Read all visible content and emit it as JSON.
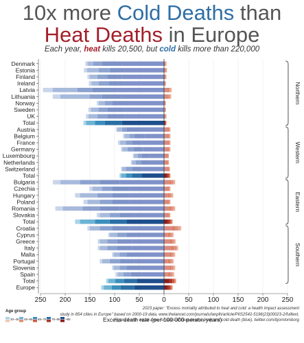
{
  "title": {
    "line1_pre": "10x more ",
    "line1_cold": "Cold Deaths",
    "line1_post": " than",
    "line2_heat": "Heat Deaths",
    "line2_post": " in Europe"
  },
  "subtitle": {
    "pre": "Each year, ",
    "heat": "heat",
    "mid": " kills 20,500, but ",
    "cold": "cold",
    "post": " kills more than 220,000"
  },
  "footnote": [
    "2023 paper: \"Excess mortality attributed to heat and cold: a health impact assessment",
    "study in 854 cities in Europe\" based on 2000-19 data, www.thelancet.com/journals/lanplh/article/PIIS2542-5196(23)00023-2/fulltext,",
    "Figure 3 with equal axes for rates of heat deaths (red) and cold death (blue). twitter.com/bjornlomborg"
  ],
  "legend": {
    "title": "Age group",
    "items": [
      "20–45",
      "45–65",
      "65–75",
      "75–85",
      ">85"
    ]
  },
  "chart_data": {
    "type": "bar",
    "orientation": "horizontal",
    "stacked": true,
    "diverging": true,
    "xlabel": "Excess death rate (per 100 000 person-years)",
    "x_ticks": [
      "250",
      "200",
      "150",
      "100",
      "50",
      "0",
      "50",
      "100",
      "150",
      "200",
      "250"
    ],
    "xlim": [
      -250,
      250
    ],
    "age_groups": [
      "20–45",
      "45–65",
      "65–75",
      "75–85",
      ">85"
    ],
    "colors": {
      "cold": [
        "#c9d5ea",
        "#a7badc",
        "#8ca2cf",
        "#7d92c6",
        "#8092c9"
      ],
      "cold_total": [
        "#a7d4e8",
        "#6cb3d4",
        "#3b8fbd",
        "#2b6fa6",
        "#1f4e8c"
      ],
      "heat": [
        "#f3d1c4",
        "#eaa995",
        "#e0917a",
        "#d98069",
        "#d98b80"
      ],
      "heat_total": [
        "#f2c6b0",
        "#e38d6d",
        "#cd5a42",
        "#ae3328",
        "#8a1f1e"
      ]
    },
    "groups": [
      {
        "name": "Northern",
        "rows": [
          {
            "label": "Denmark",
            "cold": [
              4,
              12,
              18,
              40,
              85
            ],
            "heat": [
              0,
              1,
              1,
              1,
              2
            ]
          },
          {
            "label": "Estonia",
            "cold": [
              6,
              24,
              22,
              30,
              80
            ],
            "heat": [
              0,
              1,
              1,
              1,
              3
            ]
          },
          {
            "label": "Finland",
            "cold": [
              5,
              15,
              20,
              30,
              85
            ],
            "heat": [
              0,
              1,
              1,
              1,
              2
            ]
          },
          {
            "label": "Ireland",
            "cold": [
              5,
              15,
              20,
              32,
              80
            ],
            "heat": [
              0,
              1,
              1,
              1,
              1
            ]
          },
          {
            "label": "Latvia",
            "cold": [
              20,
              50,
              30,
              45,
              100
            ],
            "heat": [
              1,
              3,
              3,
              3,
              6
            ]
          },
          {
            "label": "Lithuania",
            "cold": [
              15,
              60,
              25,
              40,
              85
            ],
            "heat": [
              1,
              3,
              3,
              3,
              5
            ]
          },
          {
            "label": "Norway",
            "cold": [
              4,
              12,
              15,
              35,
              70
            ],
            "heat": [
              0,
              1,
              1,
              1,
              1
            ]
          },
          {
            "label": "Sweden",
            "cold": [
              5,
              15,
              18,
              35,
              80
            ],
            "heat": [
              0,
              1,
              1,
              1,
              1
            ]
          },
          {
            "label": "UK",
            "cold": [
              5,
              18,
              20,
              35,
              80
            ],
            "heat": [
              0,
              1,
              1,
              1,
              2
            ]
          },
          {
            "label": "Total",
            "cold": [
              5,
              18,
              20,
              35,
              85
            ],
            "heat": [
              0,
              1,
              1,
              1,
              2
            ],
            "total": true
          }
        ]
      },
      {
        "name": "Western",
        "rows": [
          {
            "label": "Austria",
            "cold": [
              2,
              10,
              10,
              25,
              50
            ],
            "heat": [
              0,
              2,
              2,
              3,
              6
            ]
          },
          {
            "label": "Belgium",
            "cold": [
              3,
              10,
              10,
              20,
              40
            ],
            "heat": [
              0,
              2,
              2,
              3,
              6
            ]
          },
          {
            "label": "France",
            "cold": [
              4,
              12,
              12,
              20,
              45
            ],
            "heat": [
              0,
              2,
              2,
              3,
              6
            ]
          },
          {
            "label": "Germany",
            "cold": [
              3,
              10,
              12,
              20,
              42
            ],
            "heat": [
              0,
              2,
              2,
              3,
              6
            ]
          },
          {
            "label": "Luxembourg",
            "cold": [
              2,
              8,
              8,
              15,
              30
            ],
            "heat": [
              0,
              1,
              2,
              2,
              5
            ]
          },
          {
            "label": "Netherlands",
            "cold": [
              2,
              8,
              10,
              15,
              32
            ],
            "heat": [
              0,
              1,
              2,
              2,
              5
            ]
          },
          {
            "label": "Switzerland",
            "cold": [
              2,
              8,
              12,
              20,
              45
            ],
            "heat": [
              0,
              1,
              2,
              3,
              6
            ]
          },
          {
            "label": "Total",
            "cold": [
              3,
              10,
              12,
              20,
              45
            ],
            "heat": [
              0,
              2,
              2,
              3,
              6
            ],
            "total": true
          }
        ]
      },
      {
        "name": "Eastern",
        "rows": [
          {
            "label": "Bulgaria",
            "cold": [
              15,
              40,
              40,
              40,
              90
            ],
            "heat": [
              1,
              3,
              4,
              5,
              10
            ]
          },
          {
            "label": "Czechia",
            "cold": [
              6,
              20,
              20,
              35,
              70
            ],
            "heat": [
              0,
              2,
              2,
              3,
              6
            ]
          },
          {
            "label": "Hungary",
            "cold": [
              10,
              35,
              30,
              35,
              70
            ],
            "heat": [
              1,
              3,
              3,
              4,
              8
            ]
          },
          {
            "label": "Poland",
            "cold": [
              8,
              25,
              25,
              35,
              70
            ],
            "heat": [
              0,
              2,
              2,
              3,
              6
            ]
          },
          {
            "label": "Romania",
            "cold": [
              15,
              40,
              35,
              40,
              90
            ],
            "heat": [
              1,
              3,
              4,
              5,
              10
            ]
          },
          {
            "label": "Slovakia",
            "cold": [
              6,
              20,
              20,
              30,
              60
            ],
            "heat": [
              0,
              2,
              2,
              3,
              6
            ]
          },
          {
            "label": "Total",
            "cold": [
              10,
              30,
              30,
              35,
              75
            ],
            "heat": [
              1,
              2,
              3,
              4,
              8
            ],
            "total": true
          }
        ]
      },
      {
        "name": "Southern",
        "rows": [
          {
            "label": "Croatia",
            "cold": [
              5,
              20,
              25,
              35,
              70
            ],
            "heat": [
              1,
              5,
              6,
              8,
              15
            ]
          },
          {
            "label": "Cyprus",
            "cold": [
              3,
              15,
              20,
              25,
              50
            ],
            "heat": [
              1,
              3,
              3,
              5,
              8
            ]
          },
          {
            "label": "Greece",
            "cold": [
              4,
              15,
              20,
              30,
              65
            ],
            "heat": [
              1,
              3,
              4,
              6,
              10
            ]
          },
          {
            "label": "Italy",
            "cold": [
              4,
              15,
              20,
              30,
              65
            ],
            "heat": [
              1,
              3,
              5,
              7,
              13
            ]
          },
          {
            "label": "Malta",
            "cold": [
              3,
              12,
              15,
              25,
              50
            ],
            "heat": [
              1,
              3,
              4,
              5,
              10
            ]
          },
          {
            "label": "Portugal",
            "cold": [
              5,
              15,
              20,
              30,
              60
            ],
            "heat": [
              1,
              3,
              3,
              5,
              8
            ]
          },
          {
            "label": "Slovenia",
            "cold": [
              3,
              12,
              15,
              25,
              50
            ],
            "heat": [
              1,
              3,
              4,
              5,
              10
            ]
          },
          {
            "label": "Spain",
            "cold": [
              4,
              12,
              15,
              22,
              45
            ],
            "heat": [
              1,
              3,
              4,
              5,
              8
            ]
          },
          {
            "label": "Total",
            "cold": [
              4,
              14,
              18,
              26,
              55
            ],
            "heat": [
              1,
              3,
              4,
              6,
              11
            ],
            "total": true
          }
        ]
      },
      {
        "name": "",
        "rows": [
          {
            "label": "Europe",
            "cold": [
              5,
              16,
              18,
              28,
              60
            ],
            "heat": [
              1,
              2,
              3,
              4,
              8
            ],
            "total": true
          }
        ]
      }
    ]
  }
}
